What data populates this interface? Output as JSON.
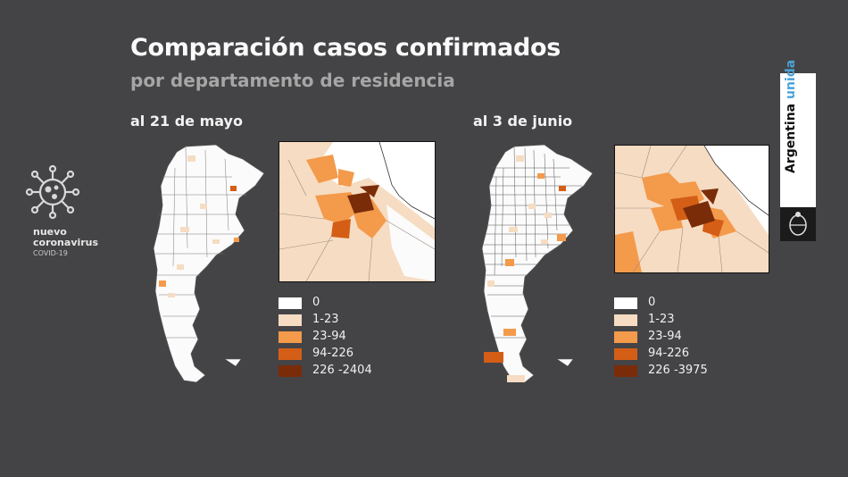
{
  "header": {
    "title": "Comparación casos confirmados",
    "subtitle": "por departamento de residencia"
  },
  "sidebar_logo": {
    "icon": "coronavirus-icon",
    "line1": "nuevo",
    "line2": "coronavirus",
    "line3": "COVID-19"
  },
  "brand": {
    "text_part1": "Argentina ",
    "text_part2": "unida",
    "crest_icon": "argentina-coat-of-arms-icon",
    "accent_color": "#4aa3d8"
  },
  "colors": {
    "class_0": "#ffffff",
    "class_1": "#f6dcc2",
    "class_2": "#f39a4b",
    "class_3": "#d45e16",
    "class_4": "#7a2c09",
    "background": "#444446"
  },
  "panels": [
    {
      "label": "al 21 de mayo",
      "legend": [
        {
          "label": "0",
          "color": "#ffffff"
        },
        {
          "label": "1-23",
          "color": "#f6dcc2"
        },
        {
          "label": "23-94",
          "color": "#f39a4b"
        },
        {
          "label": "94-226",
          "color": "#d45e16"
        },
        {
          "label": "226 -2404",
          "color": "#7a2c09"
        }
      ]
    },
    {
      "label": "al 3 de junio",
      "legend": [
        {
          "label": "0",
          "color": "#ffffff"
        },
        {
          "label": "1-23",
          "color": "#f6dcc2"
        },
        {
          "label": "23-94",
          "color": "#f39a4b"
        },
        {
          "label": "94-226",
          "color": "#d45e16"
        },
        {
          "label": "226 -3975",
          "color": "#7a2c09"
        }
      ]
    }
  ]
}
